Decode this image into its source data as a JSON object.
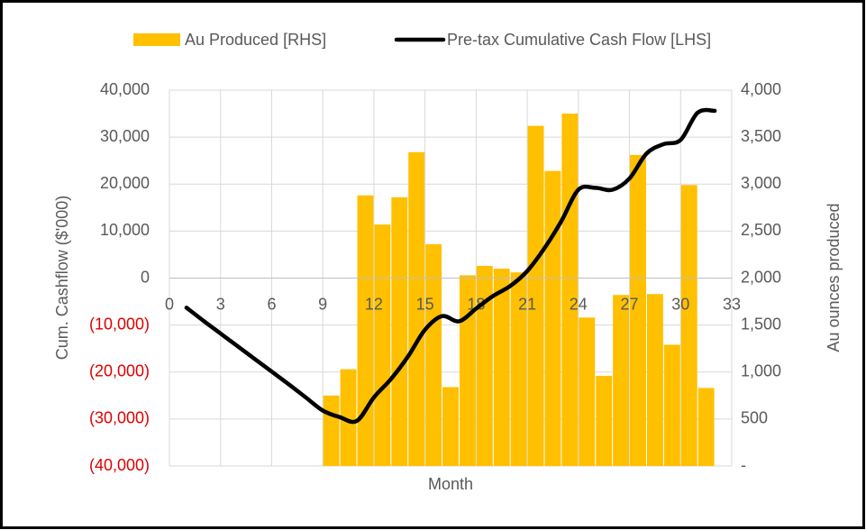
{
  "chart_data": {
    "type": "combo",
    "xlabel": "Month",
    "ylabel": "Cum. Cashflow ($'000)",
    "y2label": "Au ounces produced",
    "xlim": [
      0,
      33
    ],
    "xticks": [
      0,
      3,
      6,
      9,
      12,
      15,
      18,
      21,
      24,
      27,
      30,
      33
    ],
    "ylim": [
      -40000,
      40000
    ],
    "yticks": [
      {
        "value": -40000,
        "label": "(40,000)"
      },
      {
        "value": -30000,
        "label": "(30,000)"
      },
      {
        "value": -20000,
        "label": "(20,000)"
      },
      {
        "value": -10000,
        "label": "(10,000)"
      },
      0,
      {
        "value": 10000,
        "label": "10,000"
      },
      {
        "value": 20000,
        "label": "20,000"
      },
      {
        "value": 30000,
        "label": "30,000"
      },
      {
        "value": 40000,
        "label": "40,000"
      }
    ],
    "negative_tick_color": "#e00000",
    "y2lim": [
      0,
      4000
    ],
    "y2ticks": [
      {
        "value": 0,
        "label": "-"
      },
      500,
      {
        "value": 1000,
        "label": "1,000"
      },
      {
        "value": 1500,
        "label": "1,500"
      },
      {
        "value": 2000,
        "label": "2,000"
      },
      {
        "value": 2500,
        "label": "2,500"
      },
      {
        "value": 3000,
        "label": "3,000"
      },
      {
        "value": 3500,
        "label": "3,500"
      },
      {
        "value": 4000,
        "label": "4,000"
      }
    ],
    "grid": true,
    "legend": "top",
    "series": [
      {
        "name": "Au Produced [RHS]",
        "type": "bar",
        "axis": "y2",
        "color": "#ffc000",
        "x": [
          9.5,
          10.5,
          11.5,
          12.5,
          13.5,
          14.5,
          15.5,
          16.5,
          17.5,
          18.5,
          19.5,
          20.5,
          21.5,
          22.5,
          23.5,
          24.5,
          25.5,
          26.5,
          27.5,
          28.5,
          29.5,
          30.5,
          31.5
        ],
        "values": [
          750,
          1030,
          2880,
          2570,
          2860,
          3340,
          2360,
          840,
          2030,
          2130,
          2100,
          2060,
          3620,
          3140,
          3750,
          1580,
          960,
          1820,
          3310,
          1830,
          1290,
          2990,
          830
        ]
      },
      {
        "name": "Pre-tax Cumulative Cash Flow [LHS]",
        "type": "line",
        "color": "#000000",
        "x": [
          1,
          2,
          3,
          4,
          5,
          6,
          7,
          8,
          9,
          10,
          11,
          12,
          13,
          14,
          15,
          16,
          17,
          18,
          19,
          20,
          21,
          22,
          23,
          24,
          25,
          26,
          27,
          28,
          29,
          30,
          31,
          32
        ],
        "values": [
          -6300,
          -9100,
          -11800,
          -14500,
          -17200,
          -19900,
          -22600,
          -25400,
          -28200,
          -29600,
          -30400,
          -25400,
          -21500,
          -16700,
          -11000,
          -8100,
          -9200,
          -6500,
          -3800,
          -1700,
          1500,
          6300,
          12100,
          18800,
          19200,
          18800,
          21200,
          26500,
          28500,
          29400,
          35200,
          35600
        ]
      }
    ]
  }
}
